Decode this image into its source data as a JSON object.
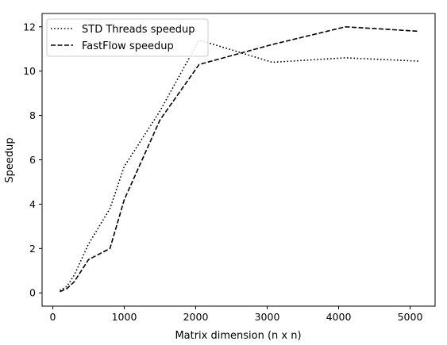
{
  "chart_data": {
    "type": "line",
    "title": "",
    "xlabel": "Matrix dimension (n x n)",
    "ylabel": "Speedup",
    "xlim": [
      -150,
      5350
    ],
    "ylim": [
      -0.6,
      12.6
    ],
    "xticks": [
      0,
      1000,
      2000,
      3000,
      4000,
      5000
    ],
    "yticks": [
      0,
      2,
      4,
      6,
      8,
      10,
      12
    ],
    "grid": false,
    "legend_position": "top-left",
    "series": [
      {
        "name": "STD Threads speedup",
        "style": "dotted",
        "color": "#000000",
        "x": [
          100,
          200,
          300,
          500,
          800,
          1000,
          1500,
          2048,
          3072,
          4096,
          5120
        ],
        "y": [
          0.1,
          0.3,
          0.8,
          2.2,
          3.8,
          5.7,
          8.2,
          11.4,
          10.4,
          10.6,
          10.45
        ]
      },
      {
        "name": "FastFlow speedup",
        "style": "dashed",
        "color": "#000000",
        "x": [
          100,
          200,
          300,
          500,
          800,
          1000,
          1500,
          2048,
          3072,
          4096,
          5120
        ],
        "y": [
          0.05,
          0.2,
          0.5,
          1.5,
          2.0,
          4.2,
          7.8,
          10.3,
          11.2,
          12.0,
          11.8
        ]
      }
    ]
  }
}
